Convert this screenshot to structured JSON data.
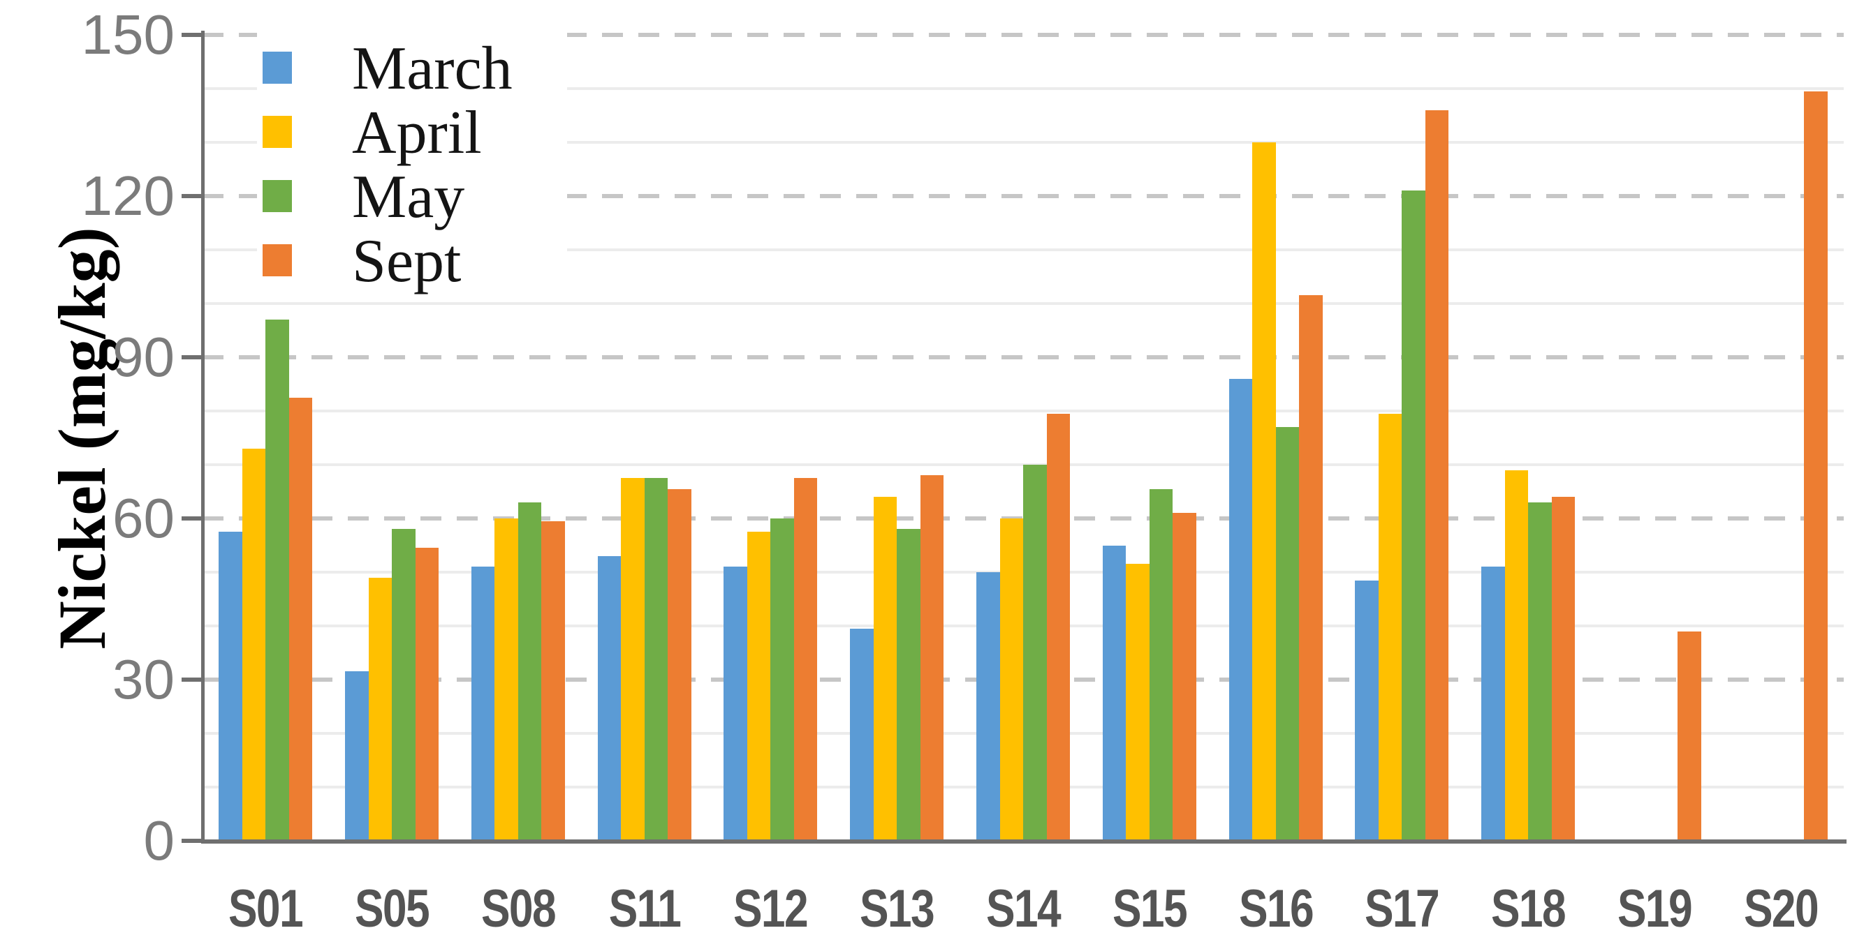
{
  "chart_data": {
    "type": "bar",
    "title": "",
    "ylabel": "Nickel (mg/kg)",
    "xlabel": "",
    "ylim": [
      0,
      150
    ],
    "yticks": [
      0,
      30,
      60,
      90,
      120,
      150
    ],
    "minor_grid_step": 10,
    "grid": "major-dashed-and-minor-solid",
    "legend_position": "top-left-inside",
    "categories": [
      "S01",
      "S05",
      "S08",
      "S11",
      "S12",
      "S13",
      "S14",
      "S15",
      "S16",
      "S17",
      "S18",
      "S19",
      "S20"
    ],
    "series": [
      {
        "name": "March",
        "color": "#5B9BD5",
        "values": [
          57.5,
          31.5,
          51,
          53,
          51,
          39.5,
          50,
          55,
          86,
          48.5,
          51,
          null,
          null
        ]
      },
      {
        "name": "April",
        "color": "#FFC000",
        "values": [
          73,
          49,
          60,
          67.5,
          57.5,
          64,
          60,
          51.5,
          130,
          79.5,
          69,
          null,
          null
        ]
      },
      {
        "name": "May",
        "color": "#70AD47",
        "values": [
          97,
          58,
          63,
          67.5,
          60,
          58,
          70,
          65.5,
          77,
          121,
          63,
          null,
          null
        ]
      },
      {
        "name": "Sept",
        "color": "#ED7D31",
        "values": [
          82.5,
          54.5,
          59.5,
          65.5,
          67.5,
          68,
          79.5,
          61,
          101.5,
          136,
          64,
          39,
          139.5
        ]
      }
    ]
  },
  "colors": {
    "background": "#ffffff",
    "major_grid": "#c6c6c6",
    "minor_grid": "#ececec",
    "axis": "#6f6f6f",
    "y_tick_label": "#7b7b7b",
    "x_tick_label": "#545454",
    "legend_text": "#141414"
  }
}
